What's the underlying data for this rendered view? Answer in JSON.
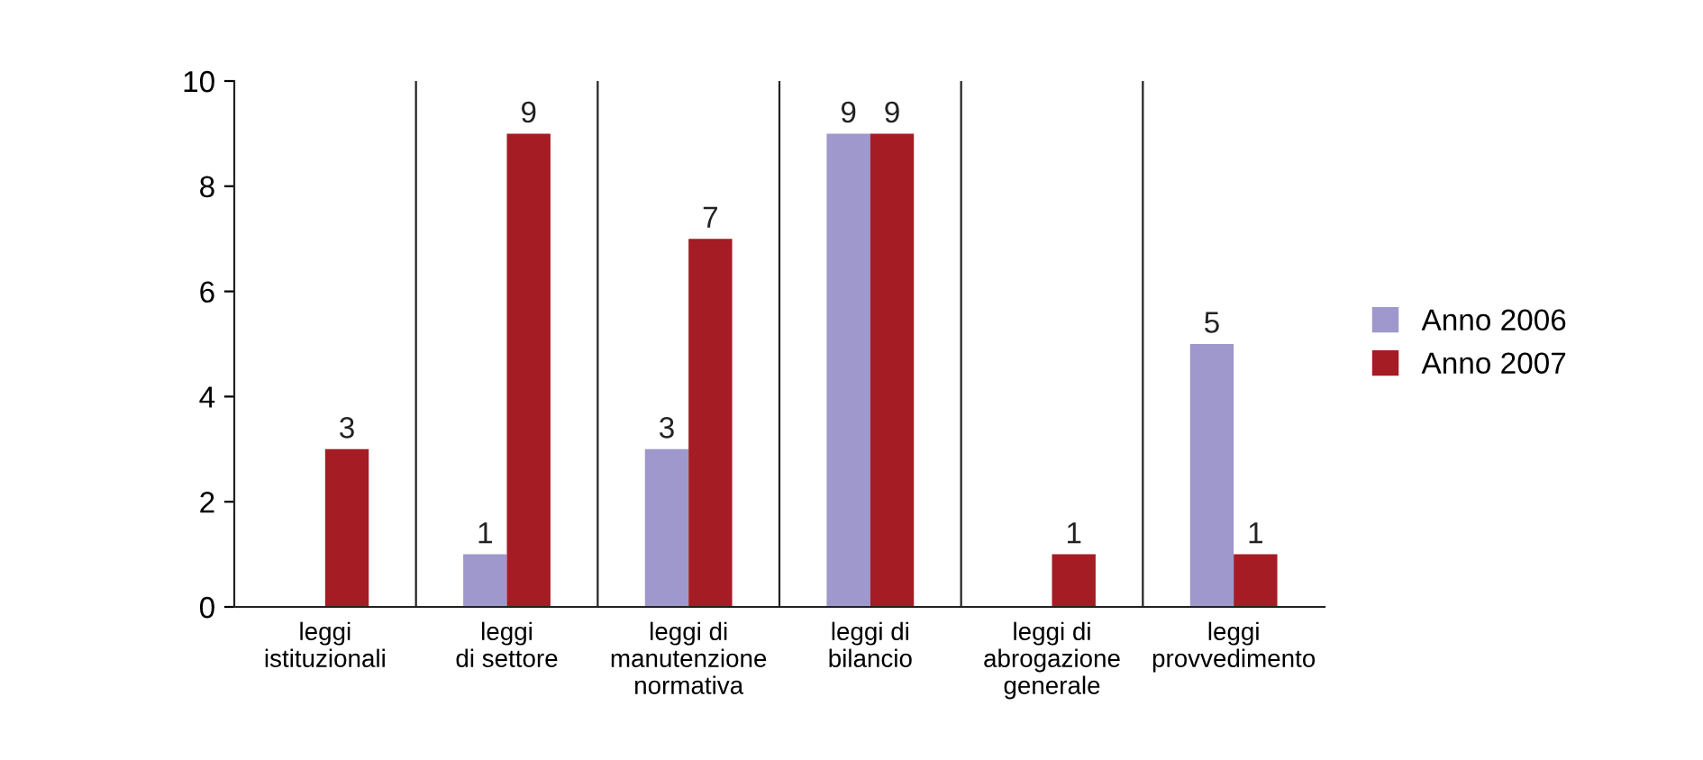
{
  "chart_data": {
    "type": "bar",
    "categories": [
      "leggi\nistituzionali",
      "leggi\ndi settore",
      "leggi di\nmanutenzione\nnormativa",
      "leggi di\nbilancio",
      "leggi di\nabrogazione\ngenerale",
      "leggi\nprovvedimento"
    ],
    "series": [
      {
        "name": "Anno 2006",
        "color": "#9e98cc",
        "values": [
          null,
          1,
          3,
          9,
          null,
          5
        ]
      },
      {
        "name": "Anno 2007",
        "color": "#a51c24",
        "values": [
          3,
          9,
          7,
          9,
          1,
          1
        ]
      }
    ],
    "ylim": [
      0,
      10
    ],
    "yticks": [
      0,
      2,
      4,
      6,
      8,
      10
    ],
    "grid": "x",
    "legend": "right",
    "data_labels": true
  }
}
